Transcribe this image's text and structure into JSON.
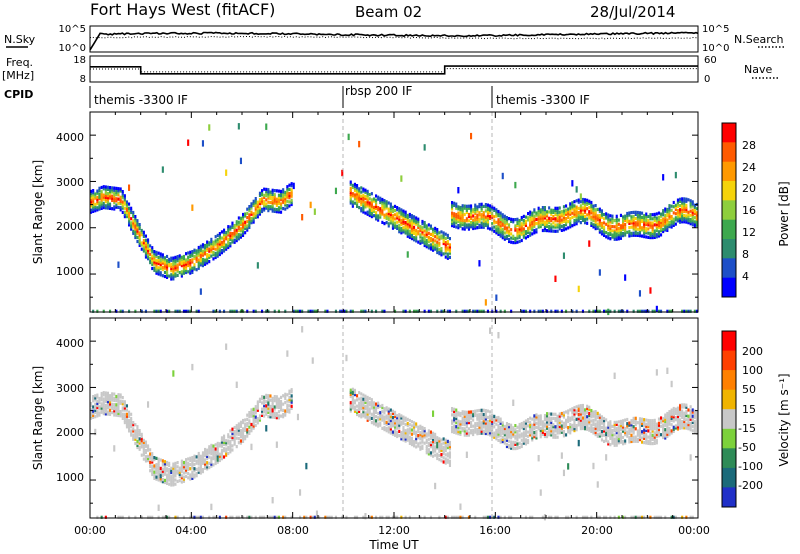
{
  "title": {
    "station": "Fort Hays West (fitACF)",
    "beam": "Beam 02",
    "date": "28/Jul/2014"
  },
  "chart_data": [
    {
      "name": "noise",
      "type": "line",
      "left_label": "N.Sky",
      "right_label": "N.Search",
      "left_ticks": [
        "10^5",
        "10^0"
      ],
      "right_ticks": [
        "10^5",
        "10^0"
      ]
    },
    {
      "name": "frequency",
      "type": "line",
      "left_label_top": "Freq.",
      "left_label_bottom": "[MHz]",
      "right_label": "Nave",
      "left_ticks": [
        "18",
        "8"
      ],
      "right_ticks": [
        "60",
        "0"
      ],
      "series": [
        {
          "name": "Freq",
          "x": [
            0,
            2,
            2,
            14,
            14,
            24
          ],
          "values": [
            14.0,
            14.0,
            10.8,
            10.8,
            14.3,
            14.3
          ]
        },
        {
          "name": "Nave",
          "x": [
            0,
            2,
            2,
            14,
            14,
            24
          ],
          "values": [
            30,
            30,
            22,
            22,
            31,
            31
          ]
        }
      ]
    },
    {
      "name": "cpid",
      "type": "table",
      "label": "CPID",
      "segments": [
        {
          "start": 0,
          "end": 10,
          "text": "themis -3300 IF"
        },
        {
          "start": 10,
          "end": 16,
          "text": "rbsp 200 IF"
        },
        {
          "start": 16,
          "end": 24,
          "text": "themis -3300 IF"
        }
      ]
    },
    {
      "name": "power",
      "type": "heatmap",
      "ylabel": "Slant Range [km]",
      "yticks": [
        "4000",
        "3000",
        "2000",
        "1000"
      ],
      "ylim": [
        180,
        4500
      ],
      "xlim": [
        0,
        24
      ],
      "colorbar_label": "Power [dB]",
      "colorbar_ticks": [
        "28",
        "24",
        "20",
        "16",
        "12",
        "8",
        "4"
      ],
      "colors": [
        "#0000ff",
        "#1d4fc8",
        "#2d8c6e",
        "#3da84e",
        "#8ece3d",
        "#f5d30a",
        "#ff9900",
        "#ff5a00",
        "#ff0000"
      ]
    },
    {
      "name": "velocity",
      "type": "heatmap",
      "ylabel": "Slant Range [km]",
      "yticks": [
        "4000",
        "3000",
        "2000",
        "1000"
      ],
      "ylim": [
        180,
        4500
      ],
      "xlim": [
        0,
        24
      ],
      "xlabel": "Time UT",
      "xticks": [
        "00:00",
        "04:00",
        "08:00",
        "12:00",
        "16:00",
        "20:00",
        "00:00"
      ],
      "colorbar_label": "Velocity [m s⁻¹]",
      "colorbar_ticks": [
        "200",
        "100",
        "50",
        "15",
        "-15",
        "-50",
        "-100",
        "-200"
      ],
      "colors": [
        "#2030c8",
        "#1b6a7a",
        "#2e8b57",
        "#7cd13b",
        "#c8c8c8",
        "#f0b400",
        "#ff8000",
        "#ff4000",
        "#ff0000"
      ]
    }
  ]
}
